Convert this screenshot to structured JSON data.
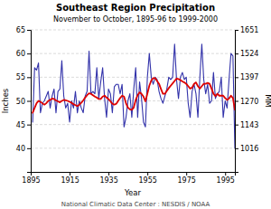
{
  "chart_data": {
    "type": "line",
    "title": "Southeast Region Precipitation",
    "subtitle": "November to October, 1895-96 to 1999-2000",
    "xlabel": "Year",
    "ylabel": "Inches",
    "y2label": "MM",
    "footer": "National Climatic Data Center : NESDIS / NOAA",
    "xlim": [
      1895,
      2000
    ],
    "xticks": [
      1895,
      1915,
      1935,
      1955,
      1975,
      1995
    ],
    "ylim": [
      35,
      65
    ],
    "yticks": [
      40,
      45,
      50,
      55,
      60,
      65
    ],
    "y2lim": [
      889,
      1651
    ],
    "y2ticks": [
      1016,
      1143,
      1270,
      1397,
      1524,
      1651
    ],
    "grid": true,
    "x": [
      1896,
      1897,
      1898,
      1899,
      1900,
      1901,
      1902,
      1903,
      1904,
      1905,
      1906,
      1907,
      1908,
      1909,
      1910,
      1911,
      1912,
      1913,
      1914,
      1915,
      1916,
      1917,
      1918,
      1919,
      1920,
      1921,
      1922,
      1923,
      1924,
      1925,
      1926,
      1927,
      1928,
      1929,
      1930,
      1931,
      1932,
      1933,
      1934,
      1935,
      1936,
      1937,
      1938,
      1939,
      1940,
      1941,
      1942,
      1943,
      1944,
      1945,
      1946,
      1947,
      1948,
      1949,
      1950,
      1951,
      1952,
      1953,
      1954,
      1955,
      1956,
      1957,
      1958,
      1959,
      1960,
      1961,
      1962,
      1963,
      1964,
      1965,
      1966,
      1967,
      1968,
      1969,
      1970,
      1971,
      1972,
      1973,
      1974,
      1975,
      1976,
      1977,
      1978,
      1979,
      1980,
      1981,
      1982,
      1983,
      1984,
      1985,
      1986,
      1987,
      1988,
      1989,
      1990,
      1991,
      1992,
      1993,
      1994,
      1995,
      1996,
      1997,
      1998,
      1999,
      2000
    ],
    "series": [
      {
        "color": "#3333aa",
        "values": [
          45.5,
          57.0,
          56.5,
          58.0,
          47.5,
          49.5,
          50.0,
          51.0,
          52.0,
          48.5,
          51.0,
          52.5,
          47.5,
          52.0,
          52.5,
          58.5,
          51.0,
          48.5,
          49.5,
          45.5,
          50.0,
          48.5,
          52.0,
          47.5,
          50.0,
          48.5,
          47.5,
          51.0,
          52.0,
          60.5,
          51.5,
          52.0,
          51.5,
          57.0,
          50.5,
          54.0,
          57.0,
          50.5,
          46.5,
          52.5,
          51.5,
          47.5,
          53.0,
          53.5,
          53.5,
          51.5,
          53.5,
          44.5,
          46.5,
          50.0,
          51.5,
          46.5,
          52.5,
          57.0,
          46.5,
          54.0,
          50.5,
          45.5,
          44.5,
          55.0,
          60.0,
          55.0,
          53.5,
          55.0,
          54.5,
          52.0,
          50.5,
          49.5,
          51.0,
          52.5,
          55.0,
          54.5,
          55.0,
          62.0,
          54.5,
          50.5,
          55.0,
          56.0,
          54.5,
          55.0,
          49.5,
          46.5,
          52.0,
          53.5,
          51.5,
          46.5,
          55.0,
          62.0,
          54.5,
          51.5,
          53.5,
          49.5,
          50.0,
          56.0,
          50.5,
          51.5,
          52.0,
          55.0,
          46.5,
          50.0,
          48.5,
          54.5,
          60.0,
          59.5,
          40.0
        ]
      },
      {
        "color": "#dd0000",
        "values": [
          47.5,
          48.5,
          49.5,
          50.0,
          49.8,
          49.5,
          49.2,
          49.5,
          50.0,
          50.2,
          50.5,
          50.4,
          50.1,
          49.9,
          49.7,
          50.0,
          50.2,
          50.1,
          50.0,
          49.8,
          49.6,
          49.3,
          49.1,
          48.9,
          49.2,
          49.6,
          50.1,
          50.7,
          51.2,
          51.6,
          51.5,
          51.2,
          50.9,
          50.7,
          50.4,
          50.4,
          50.9,
          51.1,
          50.7,
          50.4,
          49.9,
          49.4,
          49.2,
          49.4,
          50.0,
          50.6,
          51.1,
          50.9,
          49.5,
          48.6,
          48.2,
          48.1,
          48.6,
          50.2,
          51.2,
          51.8,
          51.5,
          50.9,
          49.9,
          51.5,
          53.2,
          54.3,
          54.8,
          54.8,
          54.2,
          53.6,
          52.5,
          51.5,
          51.5,
          52.1,
          52.7,
          53.2,
          53.7,
          54.2,
          54.7,
          54.6,
          54.4,
          54.1,
          53.9,
          53.6,
          53.1,
          52.6,
          52.8,
          53.6,
          53.9,
          53.1,
          52.6,
          53.1,
          53.6,
          53.6,
          53.8,
          53.6,
          52.6,
          51.5,
          51.0,
          51.5,
          51.1,
          51.1,
          51.1,
          50.6,
          50.2,
          50.5,
          51.1,
          50.6,
          48.1
        ]
      }
    ]
  }
}
